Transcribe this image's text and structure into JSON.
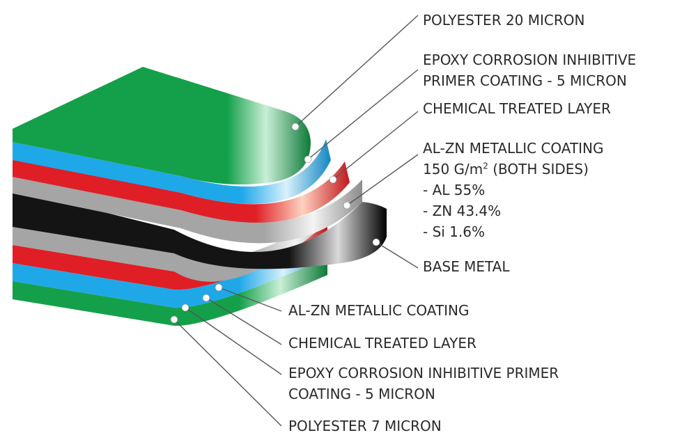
{
  "colors": {
    "polyester": "#14a04a",
    "primer": "#1fa8e8",
    "chemical": "#e01e25",
    "alzn": "#a5a5a5",
    "base": "#141414",
    "leader": "#555555",
    "text": "#2a2a2a"
  },
  "labels": {
    "top_polyester": "POLYESTER 20 MICRON",
    "top_primer_1": "EPOXY CORROSION INHIBITIVE",
    "top_primer_2": "PRIMER COATING - 5 MICRON",
    "top_chemical": "CHEMICAL TREATED LAYER",
    "top_alzn_1": "AL-ZN METALLIC COATING",
    "top_alzn_2a": "150 G/m",
    "top_alzn_2sup": "2",
    "top_alzn_2b": " (BOTH SIDES)",
    "top_alzn_al": "- AL 55%",
    "top_alzn_zn": "- ZN 43.4%",
    "top_alzn_si": "- Si 1.6%",
    "base_metal": "BASE METAL",
    "bottom_alzn": "AL-ZN METALLIC COATING",
    "bottom_chemical": "CHEMICAL TREATED LAYER",
    "bottom_primer_1": "EPOXY CORROSION INHIBITIVE PRIMER",
    "bottom_primer_2": "COATING - 5 MICRON",
    "bottom_polyester": "POLYESTER 7 MICRON"
  }
}
